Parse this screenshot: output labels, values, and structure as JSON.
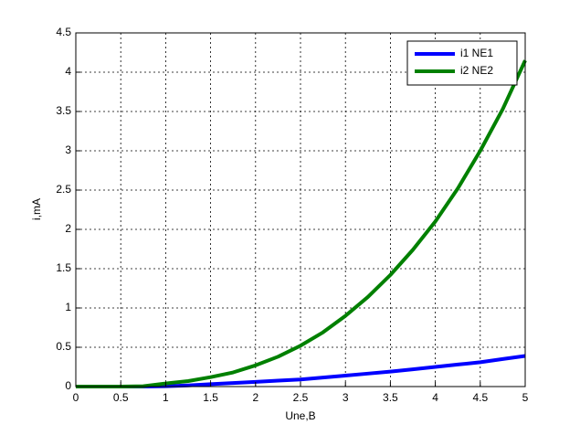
{
  "chart_data": {
    "type": "line",
    "xlabel": "Une,B",
    "ylabel": "i,mA",
    "x": [
      0,
      0.25,
      0.5,
      0.75,
      1,
      1.25,
      1.5,
      1.75,
      2,
      2.25,
      2.5,
      2.75,
      3,
      3.25,
      3.5,
      3.75,
      4,
      4.25,
      4.5,
      4.75,
      5
    ],
    "series": [
      {
        "name": "i1 NE1",
        "color": "#0000ff",
        "values": [
          0,
          0,
          0,
          0,
          0.005,
          0.015,
          0.03,
          0.045,
          0.06,
          0.075,
          0.09,
          0.115,
          0.14,
          0.165,
          0.19,
          0.22,
          0.25,
          0.28,
          0.31,
          0.35,
          0.39
        ]
      },
      {
        "name": "i2 NE2",
        "color": "#008000",
        "values": [
          0,
          0,
          0,
          0.005,
          0.04,
          0.07,
          0.12,
          0.18,
          0.27,
          0.38,
          0.52,
          0.69,
          0.9,
          1.14,
          1.42,
          1.74,
          2.1,
          2.52,
          3.0,
          3.53,
          4.15
        ]
      }
    ],
    "xlim": [
      0,
      5
    ],
    "xticks": [
      0,
      0.5,
      1,
      1.5,
      2,
      2.5,
      3,
      3.5,
      4,
      4.5,
      5
    ],
    "ylim": [
      0,
      4.5
    ],
    "yticks": [
      0,
      0.5,
      1,
      1.5,
      2,
      2.5,
      3,
      3.5,
      4,
      4.5
    ],
    "grid": true,
    "legend": "northeast"
  }
}
